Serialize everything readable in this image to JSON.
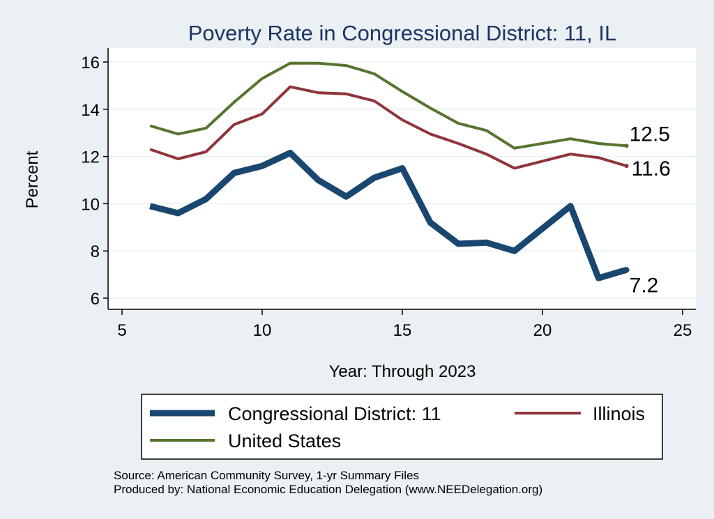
{
  "chart_data": {
    "type": "line",
    "title": "Poverty Rate in Congressional District:  11, IL",
    "xlabel": "Year: Through 2023",
    "ylabel": "Percent",
    "xlim": [
      5,
      25
    ],
    "ylim": [
      5.6,
      16.4
    ],
    "xticks": [
      5,
      10,
      15,
      20,
      25
    ],
    "yticks": [
      6,
      8,
      10,
      12,
      14,
      16
    ],
    "grid": true,
    "legend_position": "bottom",
    "x": [
      6,
      7,
      8,
      9,
      10,
      11,
      12,
      13,
      14,
      15,
      16,
      17,
      18,
      19,
      21,
      22,
      23
    ],
    "series": [
      {
        "name": "Congressional District:  11",
        "color": "#1a476f",
        "width": 9,
        "values": [
          9.9,
          9.6,
          10.2,
          11.3,
          11.6,
          12.15,
          11.0,
          10.3,
          11.1,
          11.5,
          9.2,
          8.3,
          8.35,
          8.0,
          9.9,
          6.85,
          7.2
        ],
        "end_label": "7.2"
      },
      {
        "name": "Illinois",
        "color": "#90353b",
        "width": 4,
        "values": [
          12.3,
          11.9,
          12.2,
          13.35,
          13.8,
          14.95,
          14.7,
          14.65,
          14.35,
          13.55,
          12.95,
          12.55,
          12.1,
          11.5,
          12.1,
          11.95,
          11.6
        ],
        "end_label": "11.6"
      },
      {
        "name": "United States",
        "color": "#55752f",
        "width": 4,
        "values": [
          13.3,
          12.95,
          13.2,
          14.3,
          15.3,
          15.95,
          15.95,
          15.85,
          15.5,
          14.75,
          14.05,
          13.4,
          13.1,
          12.35,
          12.75,
          12.55,
          12.45
        ],
        "end_label": "12.5"
      }
    ]
  },
  "footer": {
    "source": "Source: American Community Survey, 1-yr Summary Files",
    "produced": "Produced by: National Economic Education Delegation (www.NEEDelegation.org)"
  }
}
